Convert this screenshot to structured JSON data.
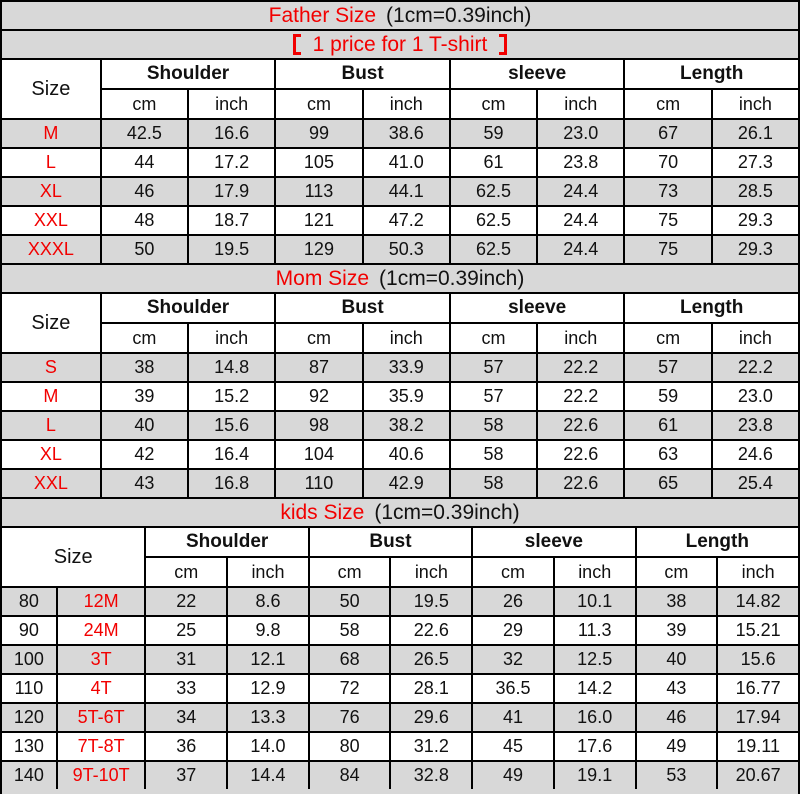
{
  "colors": {
    "accent_red": "#f20000",
    "shade_gray": "#d8d8d8",
    "border_black": "#000000"
  },
  "sections": [
    {
      "id": "father",
      "title": "Father Size",
      "note": "(1cm=0.39inch)",
      "banner": {
        "bracket_open": "【",
        "label": "1 price for 1 T-shirt",
        "bracket_close": "】"
      },
      "size_header": "Size",
      "size_col_span": 1,
      "groups": [
        "Shoulder",
        "Bust",
        "sleeve",
        "Length"
      ],
      "sub_headers": [
        "cm",
        "inch"
      ],
      "rows": [
        {
          "labels": [
            "M"
          ],
          "values": [
            "42.5",
            "16.6",
            "99",
            "38.6",
            "59",
            "23.0",
            "67",
            "26.1"
          ]
        },
        {
          "labels": [
            "L"
          ],
          "values": [
            "44",
            "17.2",
            "105",
            "41.0",
            "61",
            "23.8",
            "70",
            "27.3"
          ]
        },
        {
          "labels": [
            "XL"
          ],
          "values": [
            "46",
            "17.9",
            "113",
            "44.1",
            "62.5",
            "24.4",
            "73",
            "28.5"
          ]
        },
        {
          "labels": [
            "XXL"
          ],
          "values": [
            "48",
            "18.7",
            "121",
            "47.2",
            "62.5",
            "24.4",
            "75",
            "29.3"
          ]
        },
        {
          "labels": [
            "XXXL"
          ],
          "values": [
            "50",
            "19.5",
            "129",
            "50.3",
            "62.5",
            "24.4",
            "75",
            "29.3"
          ]
        }
      ]
    },
    {
      "id": "mom",
      "title": "Mom Size",
      "note": "(1cm=0.39inch)",
      "size_header": "Size",
      "size_col_span": 1,
      "groups": [
        "Shoulder",
        "Bust",
        "sleeve",
        "Length"
      ],
      "sub_headers": [
        "cm",
        "inch"
      ],
      "rows": [
        {
          "labels": [
            "S"
          ],
          "values": [
            "38",
            "14.8",
            "87",
            "33.9",
            "57",
            "22.2",
            "57",
            "22.2"
          ]
        },
        {
          "labels": [
            "M"
          ],
          "values": [
            "39",
            "15.2",
            "92",
            "35.9",
            "57",
            "22.2",
            "59",
            "23.0"
          ]
        },
        {
          "labels": [
            "L"
          ],
          "values": [
            "40",
            "15.6",
            "98",
            "38.2",
            "58",
            "22.6",
            "61",
            "23.8"
          ]
        },
        {
          "labels": [
            "XL"
          ],
          "values": [
            "42",
            "16.4",
            "104",
            "40.6",
            "58",
            "22.6",
            "63",
            "24.6"
          ]
        },
        {
          "labels": [
            "XXL"
          ],
          "values": [
            "43",
            "16.8",
            "110",
            "42.9",
            "58",
            "22.6",
            "65",
            "25.4"
          ]
        }
      ]
    },
    {
      "id": "kids",
      "title": "kids Size",
      "note": "(1cm=0.39inch)",
      "size_header": "Size",
      "size_col_span": 2,
      "groups": [
        "Shoulder",
        "Bust",
        "sleeve",
        "Length"
      ],
      "sub_headers": [
        "cm",
        "inch"
      ],
      "rows": [
        {
          "labels": [
            "80",
            "12M"
          ],
          "values": [
            "22",
            "8.6",
            "50",
            "19.5",
            "26",
            "10.1",
            "38",
            "14.82"
          ]
        },
        {
          "labels": [
            "90",
            "24M"
          ],
          "values": [
            "25",
            "9.8",
            "58",
            "22.6",
            "29",
            "11.3",
            "39",
            "15.21"
          ]
        },
        {
          "labels": [
            "100",
            "3T"
          ],
          "values": [
            "31",
            "12.1",
            "68",
            "26.5",
            "32",
            "12.5",
            "40",
            "15.6"
          ]
        },
        {
          "labels": [
            "110",
            "4T"
          ],
          "values": [
            "33",
            "12.9",
            "72",
            "28.1",
            "36.5",
            "14.2",
            "43",
            "16.77"
          ]
        },
        {
          "labels": [
            "120",
            "5T-6T"
          ],
          "values": [
            "34",
            "13.3",
            "76",
            "29.6",
            "41",
            "16.0",
            "46",
            "17.94"
          ]
        },
        {
          "labels": [
            "130",
            "7T-8T"
          ],
          "values": [
            "36",
            "14.0",
            "80",
            "31.2",
            "45",
            "17.6",
            "49",
            "19.11"
          ]
        },
        {
          "labels": [
            "140",
            "9T-10T"
          ],
          "values": [
            "37",
            "14.4",
            "84",
            "32.8",
            "49",
            "19.1",
            "53",
            "20.67"
          ]
        }
      ]
    }
  ]
}
